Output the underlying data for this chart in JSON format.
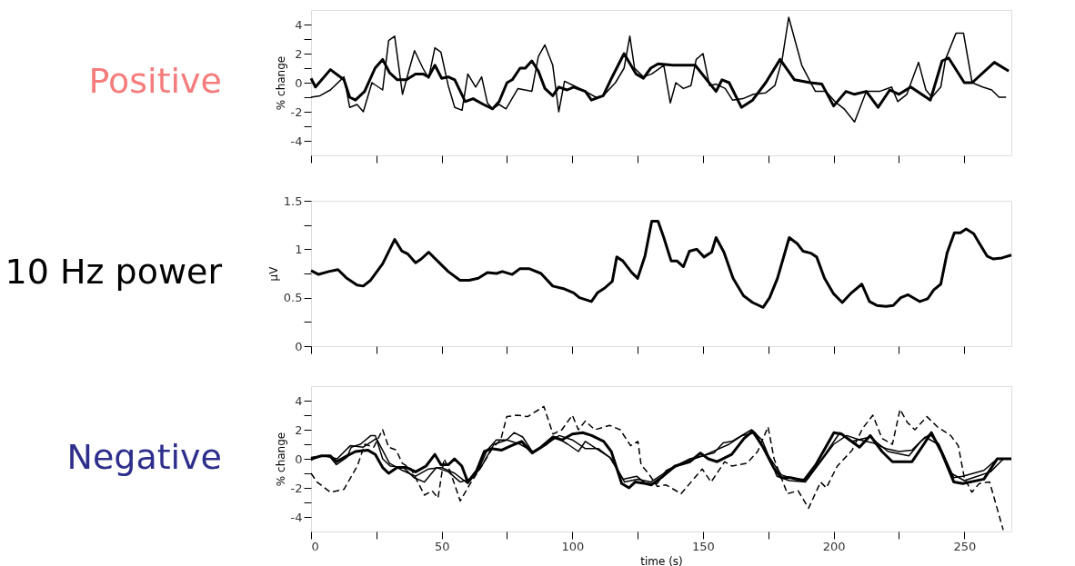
{
  "chart_data": [
    {
      "type": "line",
      "title": "Positive",
      "ylabel": "% change",
      "xlim": [
        0,
        268
      ],
      "ylim": [
        -5,
        5
      ],
      "xticks": [
        0,
        {
          "value": 25,
          "label": null
        },
        50,
        {
          "value": 75,
          "label": null
        },
        100,
        {
          "value": 125,
          "label": null
        },
        150,
        {
          "value": 175,
          "label": null
        },
        200,
        {
          "value": 225,
          "label": null
        },
        250
      ],
      "yticks": [
        -4,
        {
          "value": -3,
          "label": null
        },
        -2,
        {
          "value": -1,
          "label": null
        },
        0,
        {
          "value": 1,
          "label": null
        },
        2,
        {
          "value": 3,
          "label": null
        },
        4
      ],
      "tick_labels": "y",
      "grid": false,
      "legend": false,
      "line_style": "solid",
      "series": [
        {
          "color": "#000000",
          "x": [
            0,
            1.7,
            7.4,
            12.6,
            14.8,
            17,
            20.5,
            24.5,
            27.4,
            30,
            33,
            36.5,
            40,
            42.8,
            45,
            47.4,
            50,
            52.5,
            55,
            59,
            62,
            66,
            69.5,
            72,
            75,
            77,
            80,
            82,
            84.5,
            87,
            89.5,
            92.5,
            94.8,
            98,
            100.5,
            105,
            107.3,
            111.8,
            114.7,
            119.8,
            124.4,
            127.2,
            130,
            132.8,
            138.5,
            147,
            151,
            155,
            157.3,
            160,
            164.7,
            169,
            174,
            179.5,
            185,
            191,
            195.5,
            200,
            204.7,
            208,
            212.5,
            217,
            221.5,
            225,
            229.5,
            237,
            241.5,
            244,
            250,
            253,
            261.5,
            267
          ],
          "values": [
            0.3,
            -0.3,
            0.9,
            0.2,
            -1.0,
            -1.2,
            -0.6,
            1.0,
            1.6,
            0.7,
            0.2,
            0.2,
            0.6,
            0.6,
            0.4,
            1.2,
            0.3,
            0.4,
            0.2,
            -1.3,
            -1.1,
            -1.5,
            -1.8,
            -1.3,
            0,
            0.2,
            1.0,
            1.0,
            1.5,
            0.8,
            -0.4,
            -0.9,
            -0.3,
            -0.5,
            -0.3,
            -0.6,
            -1.2,
            -0.9,
            0.2,
            2.0,
            0.6,
            0.3,
            1.0,
            1.3,
            1.2,
            1.2,
            0.3,
            -0.6,
            0.2,
            0,
            -1.7,
            -1.2,
            0,
            1.6,
            0.2,
            0,
            -0.1,
            -1.6,
            -0.6,
            -0.8,
            -0.6,
            -1.7,
            -0.5,
            -0.8,
            -0.3,
            -1.2,
            1.5,
            1.7,
            0,
            0,
            1.4,
            0.8
          ]
        },
        {
          "color": "#000000",
          "x": [
            0,
            3.4,
            7.4,
            12.6,
            14.8,
            17.6,
            20,
            23.3,
            27.4,
            29.7,
            32,
            35,
            37.7,
            39.6,
            42.8,
            45,
            47.4,
            49.7,
            52.5,
            55,
            57.8,
            60,
            63,
            65.3,
            67.5,
            69.5,
            72,
            74.6,
            79.2,
            84.5,
            87,
            89.5,
            92.5,
            94.8,
            97,
            100.5,
            105,
            109,
            111.8,
            116.5,
            119.8,
            122,
            123.8,
            127.2,
            130.4,
            135,
            137.5,
            139.6,
            142.5,
            145.4,
            147.4,
            150,
            152.5,
            155,
            158.5,
            161.3,
            165.3,
            169.3,
            174,
            177.5,
            180.3,
            182.8,
            187.8,
            190.7,
            193,
            197,
            200.5,
            204,
            208,
            212.5,
            217.6,
            222.2,
            224.5,
            228,
            232.5,
            235.3,
            237.6,
            241,
            242.8,
            246.8,
            249.7,
            253,
            257,
            260.5,
            263.3,
            266
          ],
          "values": [
            -1.0,
            -0.9,
            -0.5,
            0.4,
            -1.7,
            -1.5,
            -2.0,
            0,
            -0.5,
            2.9,
            3.2,
            -0.8,
            1.0,
            2.2,
            1.0,
            0.3,
            2.4,
            2.1,
            -0.2,
            -1.7,
            -1.9,
            0.6,
            -0.3,
            0.4,
            -1.4,
            -1.8,
            -1.5,
            -1.8,
            -0.4,
            -0.6,
            1.8,
            2.6,
            1.2,
            -2.0,
            0.1,
            -0.2,
            -0.6,
            -1.0,
            -0.9,
            0,
            1.0,
            3.2,
            1.0,
            0.4,
            0.6,
            1.2,
            -1.4,
            0,
            -0.4,
            -0.2,
            1.6,
            2.0,
            -0.2,
            -0.1,
            -0.4,
            -1.2,
            -1.1,
            -0.8,
            -0.7,
            -0.2,
            1.6,
            4.5,
            1.2,
            0.2,
            -0.6,
            -0.6,
            -1.3,
            -1.8,
            -2.7,
            -0.6,
            -0.6,
            -0.3,
            -1.3,
            -0.8,
            1.4,
            -0.5,
            -1.0,
            -0.3,
            1.6,
            3.4,
            3.4,
            0,
            -0.3,
            -0.5,
            -1.0,
            -1.0
          ]
        }
      ]
    },
    {
      "type": "line",
      "title": "10 Hz power",
      "ylabel": "µV",
      "xlim": [
        0,
        268
      ],
      "ylim": [
        0,
        1.5
      ],
      "xticks": [
        0,
        {
          "value": 25,
          "label": null
        },
        50,
        {
          "value": 75,
          "label": null
        },
        100,
        {
          "value": 125,
          "label": null
        },
        150,
        {
          "value": 175,
          "label": null
        },
        200,
        {
          "value": 225,
          "label": null
        },
        250
      ],
      "yticks": [
        0,
        {
          "value": 0.25,
          "label": null
        },
        0.5,
        {
          "value": 0.75,
          "label": null
        },
        1,
        {
          "value": 1.25,
          "label": null
        },
        1.5
      ],
      "tick_labels": "y",
      "grid": false,
      "legend": false,
      "line_style": "solid",
      "series": [
        {
          "color": "#000000",
          "x": [
            0,
            2.9,
            6.8,
            10.3,
            13.7,
            17.6,
            20,
            22.8,
            27.4,
            32,
            34.8,
            37.1,
            40,
            42.2,
            45,
            48,
            52.5,
            57,
            60.5,
            64,
            67.5,
            71,
            73.2,
            77,
            80,
            83.4,
            88,
            92.5,
            97,
            100.5,
            102.7,
            107.3,
            109.6,
            112.4,
            115.3,
            117,
            119.3,
            122.7,
            125,
            127.8,
            130.4,
            132.8,
            135,
            137.8,
            140,
            142.5,
            144.8,
            147.6,
            150.4,
            153.3,
            155,
            158,
            161.5,
            165.5,
            169,
            173,
            175.5,
            178.5,
            183,
            186,
            188.3,
            191.2,
            193.5,
            196.5,
            200,
            203.3,
            206.8,
            210.8,
            213.7,
            216.5,
            220,
            222.8,
            225.7,
            228.5,
            233,
            236,
            238.3,
            241,
            243.4,
            246.2,
            248.5,
            250.7,
            253.6,
            255.8,
            258.7,
            261,
            264.4,
            268
          ],
          "values": [
            0.78,
            0.74,
            0.77,
            0.79,
            0.7,
            0.63,
            0.62,
            0.68,
            0.85,
            1.1,
            0.98,
            0.95,
            0.86,
            0.9,
            0.97,
            0.89,
            0.77,
            0.68,
            0.68,
            0.7,
            0.76,
            0.75,
            0.77,
            0.74,
            0.8,
            0.8,
            0.75,
            0.62,
            0.59,
            0.55,
            0.5,
            0.46,
            0.55,
            0.6,
            0.67,
            0.92,
            0.88,
            0.76,
            0.7,
            0.93,
            1.29,
            1.29,
            1.12,
            0.88,
            0.88,
            0.82,
            0.98,
            1.0,
            0.92,
            0.97,
            1.12,
            0.97,
            0.7,
            0.52,
            0.45,
            0.4,
            0.5,
            0.7,
            1.12,
            1.06,
            0.98,
            0.96,
            0.92,
            0.7,
            0.54,
            0.45,
            0.55,
            0.64,
            0.46,
            0.42,
            0.41,
            0.42,
            0.5,
            0.53,
            0.46,
            0.49,
            0.58,
            0.64,
            0.96,
            1.17,
            1.17,
            1.21,
            1.16,
            1.06,
            0.93,
            0.9,
            0.91,
            0.94
          ]
        }
      ]
    },
    {
      "type": "line",
      "title": "Negative",
      "ylabel": "% change",
      "xlabel": "time (s)",
      "xlim": [
        0,
        268
      ],
      "ylim": [
        -5,
        5
      ],
      "xticks": [
        0,
        {
          "value": 25,
          "label": null
        },
        50,
        {
          "value": 75,
          "label": null
        },
        100,
        {
          "value": 125,
          "label": null
        },
        150,
        {
          "value": 175,
          "label": null
        },
        200,
        {
          "value": 225,
          "label": null
        },
        250
      ],
      "yticks": [
        -4,
        {
          "value": -3,
          "label": null
        },
        -2,
        {
          "value": -1,
          "label": null
        },
        0,
        {
          "value": 1,
          "label": null
        },
        2,
        {
          "value": 3,
          "label": null
        },
        4
      ],
      "grid": false,
      "legend": false,
      "series": [
        {
          "color": "#000000",
          "line_style": "solid",
          "x": [
            0,
            4,
            7.4,
            9.7,
            13.7,
            17,
            21.7,
            24.6,
            27.4,
            29.7,
            33,
            36.6,
            40,
            44,
            47.4,
            49.7,
            52.6,
            54.9,
            57.7,
            60,
            63.4,
            66.3,
            69,
            73,
            76.6,
            80.6,
            84.6,
            88,
            92.6,
            96,
            100,
            104,
            107.4,
            112,
            114.9,
            118.9,
            121.7,
            124,
            128,
            130.2,
            134.7,
            139.3,
            145,
            149,
            152,
            155.4,
            161,
            165.7,
            169,
            173,
            177,
            180,
            183.5,
            188.6,
            193.2,
            200.1,
            203,
            209.9,
            214,
            218.5,
            222.5,
            230,
            234.5,
            237.4,
            241.4,
            246,
            249.4,
            257.5,
            262.6,
            268
          ],
          "values": [
            0,
            0.2,
            0.2,
            -0.2,
            0.2,
            0.5,
            0.6,
            0.3,
            -0.6,
            -1.0,
            -0.6,
            -0.6,
            -0.9,
            -0.5,
            0.3,
            -0.4,
            -0.4,
            0,
            -0.5,
            -1.6,
            -0.8,
            0.5,
            0.7,
            0.6,
            0.9,
            1.2,
            0.4,
            0.8,
            1.5,
            1.3,
            1.7,
            1.8,
            1.6,
            1.2,
            0.5,
            -1.7,
            -2.0,
            -1.6,
            -1.7,
            -1.8,
            -1.2,
            -0.5,
            -0.2,
            0.4,
            0,
            -0.2,
            0.3,
            1.4,
            1.9,
            0.8,
            -0.6,
            -1.3,
            -1.3,
            -1.5,
            -0.4,
            1.8,
            1.7,
            0.8,
            1.6,
            0.5,
            -0.2,
            -0.2,
            1.0,
            1.8,
            0.4,
            -1.6,
            -1.7,
            -1.4,
            0,
            0
          ]
        },
        {
          "color": "#000000",
          "line_style": "solid",
          "x": [
            0,
            3.4,
            6.9,
            9.7,
            13.7,
            15.4,
            18.9,
            22.9,
            24.6,
            27.4,
            30.3,
            35.4,
            39.4,
            43.4,
            48,
            52.6,
            57.1,
            60.6,
            64,
            67.4,
            70.9,
            74.9,
            77.7,
            81,
            85,
            90.3,
            93.7,
            98.3,
            102.3,
            105,
            110,
            114.3,
            119.4,
            124.6,
            128,
            132.5,
            135.9,
            145,
            154.2,
            157.7,
            161,
            168.6,
            172.6,
            178.3,
            183,
            189.2,
            195.5,
            202.4,
            207,
            214,
            220.8,
            228.8,
            233.4,
            236.8,
            240.3,
            246,
            249.4,
            257.5,
            262.6,
            268
          ],
          "values": [
            -0.1,
            0.2,
            0.2,
            -0.4,
            0.1,
            0.8,
            1.0,
            1.6,
            1.6,
            0,
            -0.5,
            -0.6,
            -1.3,
            -1.6,
            -0.6,
            -0.9,
            -1.6,
            -1.4,
            -0.8,
            0.6,
            1.3,
            1.3,
            1.8,
            1.5,
            0.4,
            1.0,
            1.5,
            1.0,
            0.5,
            1.2,
            0.6,
            0.1,
            -1.4,
            -1.2,
            -1.7,
            -1.7,
            -0.8,
            0,
            0.4,
            1.1,
            1.2,
            2.0,
            1.3,
            -1.2,
            -1.5,
            -1.6,
            0,
            1.8,
            1.2,
            1.5,
            0.5,
            0.2,
            1.2,
            1.7,
            1.0,
            -1.3,
            -1.2,
            -0.8,
            0,
            0
          ]
        },
        {
          "color": "#000000",
          "line_style": "solid",
          "x": [
            0,
            5,
            10,
            15,
            20,
            25,
            30,
            35,
            40,
            45,
            50,
            55,
            60,
            65,
            70,
            75,
            80,
            85,
            90,
            95,
            100,
            105,
            110,
            115,
            120,
            125,
            130,
            135,
            140,
            145,
            150,
            155,
            160,
            165,
            170,
            175,
            180,
            185,
            190,
            195,
            200,
            205,
            210,
            215,
            220,
            225,
            230,
            235,
            240,
            245,
            250,
            255,
            260,
            265
          ],
          "values": [
            0.1,
            0.2,
            0,
            0.9,
            0.8,
            1.4,
            -0.3,
            -0.8,
            -1.2,
            -0.7,
            -0.6,
            -1.0,
            -1.7,
            -0.6,
            1.0,
            1.3,
            1.0,
            0.5,
            1.0,
            1.6,
            1.3,
            0.7,
            0.7,
            0,
            -1.6,
            -1.4,
            -1.6,
            -1.0,
            -0.5,
            -0.1,
            0.2,
            0.6,
            1.0,
            1.6,
            1.8,
            0.2,
            -1.1,
            -1.4,
            -1.4,
            -0.2,
            1.0,
            1.6,
            1.3,
            1.1,
            0.7,
            0.5,
            0.6,
            1.5,
            1.0,
            -1.0,
            -1.5,
            -1.2,
            -0.9,
            0
          ]
        },
        {
          "color": "#000000",
          "line_style": "dashed",
          "x": [
            0,
            2.3,
            7.4,
            12.6,
            17.7,
            20.6,
            24,
            27.4,
            29.7,
            32.6,
            34.9,
            38.3,
            43.4,
            46.3,
            48.6,
            50.9,
            53.1,
            57.1,
            60.6,
            64.6,
            69.7,
            72.6,
            74.9,
            78.9,
            82.9,
            89.1,
            92.6,
            96,
            100,
            102.3,
            105,
            108.6,
            114.3,
            118.3,
            122.3,
            125.1,
            126.3,
            129.1,
            132.5,
            135.9,
            141.6,
            149.7,
            153.1,
            158.3,
            161.1,
            166.9,
            170.9,
            174.9,
            177.2,
            182.3,
            186.4,
            190.4,
            195,
            197.2,
            201.4,
            207.1,
            211.1,
            215,
            218.5,
            222.5,
            225.4,
            228.2,
            231.1,
            235.7,
            239.7,
            244.8,
            247.7,
            250,
            252.9,
            255.7,
            259.7,
            264.9
          ],
          "values": [
            -1.0,
            -1.6,
            -2.3,
            -2.1,
            -0.5,
            1.0,
            0.8,
            2.0,
            0.8,
            0.6,
            -0.3,
            -0.7,
            -2.5,
            -2.2,
            -2.7,
            0,
            -0.8,
            -2.9,
            -1.8,
            -0.7,
            0.8,
            1.3,
            2.9,
            3.0,
            2.9,
            3.6,
            1.7,
            2.0,
            3.0,
            2.0,
            2.6,
            2.0,
            2.3,
            2.0,
            0.9,
            1.2,
            -0.4,
            -1.0,
            -1.9,
            -1.8,
            -2.4,
            -0.7,
            -1.6,
            -0.2,
            -0.5,
            -0.3,
            0.5,
            2.2,
            0,
            -2.4,
            -2.2,
            -3.4,
            -1.6,
            -2.0,
            -0.5,
            0.6,
            2.1,
            3.0,
            1.4,
            1.0,
            3.4,
            2.5,
            2.0,
            2.9,
            2.2,
            1.6,
            0.9,
            -1.3,
            -2.3,
            -1.7,
            -1.6,
            -4.9
          ]
        }
      ]
    }
  ]
}
